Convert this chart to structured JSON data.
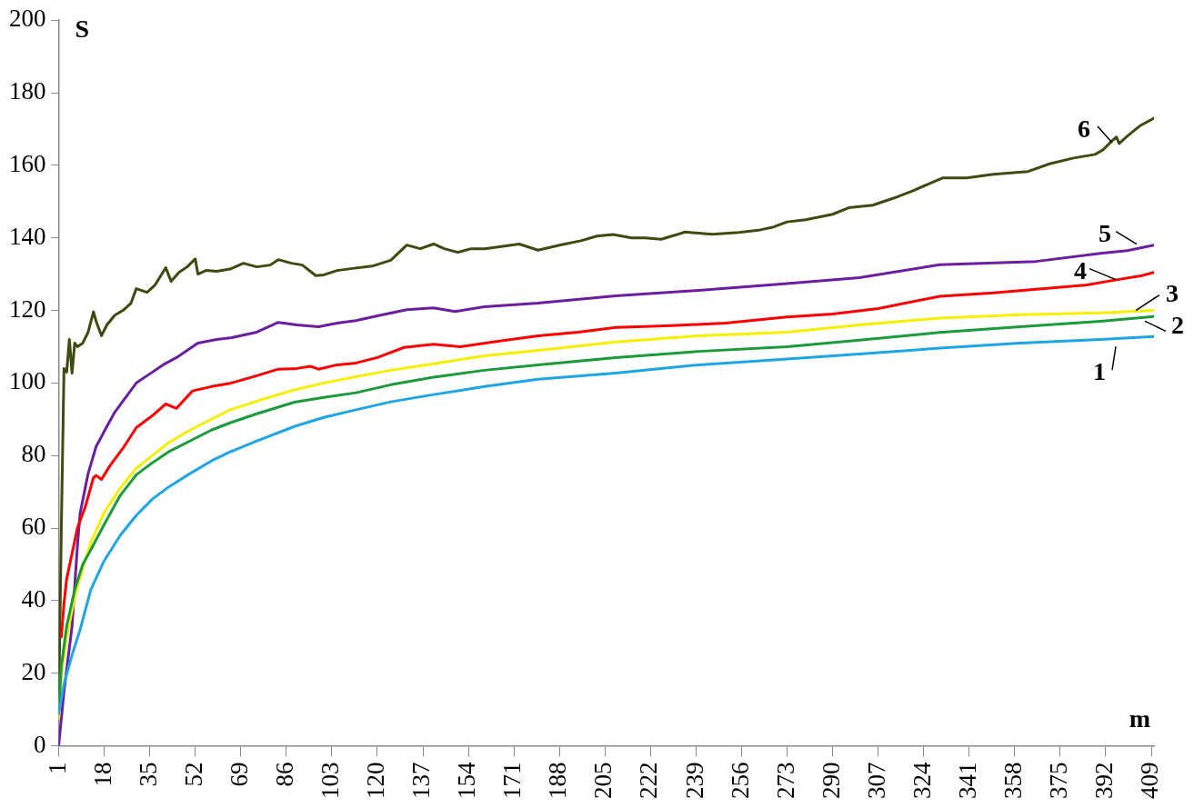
{
  "chart_data": {
    "type": "line",
    "xlabel": "m",
    "ylabel": "S",
    "xlim": [
      1,
      410
    ],
    "xticks": [
      1,
      18,
      35,
      52,
      69,
      86,
      103,
      120,
      137,
      154,
      171,
      188,
      205,
      222,
      239,
      256,
      273,
      290,
      307,
      324,
      341,
      358,
      375,
      392,
      409
    ],
    "ylim": [
      0,
      200
    ],
    "yticks": [
      0,
      20,
      40,
      60,
      80,
      100,
      120,
      140,
      160,
      180,
      200
    ],
    "grid": false,
    "legend": false,
    "marker": "none",
    "line_style": "solid",
    "series": [
      {
        "name": "1",
        "color": "#1ea5e6",
        "x": [
          1,
          3,
          6,
          9,
          13,
          18,
          24,
          30,
          36,
          42,
          50,
          58,
          65,
          75,
          89,
          100,
          112,
          125,
          141,
          160,
          180,
          209,
          240,
          273,
          300,
          330,
          360,
          390,
          410
        ],
        "values": [
          8.8,
          17,
          25,
          32,
          43,
          51,
          58,
          63.5,
          68,
          71.3,
          75,
          78.5,
          81,
          84,
          88,
          90.5,
          92.6,
          94.8,
          96.8,
          99,
          101,
          102.7,
          105,
          106.6,
          108,
          109.6,
          111,
          112,
          112.8
        ]
      },
      {
        "name": "2",
        "color": "#1a9a3a",
        "x": [
          1,
          2,
          4,
          7,
          10,
          13,
          18,
          24,
          30,
          36,
          42,
          50,
          58,
          65,
          75,
          89,
          100,
          112,
          125,
          141,
          160,
          180,
          209,
          240,
          273,
          300,
          330,
          360,
          390,
          410
        ],
        "values": [
          9.6,
          22,
          33,
          43,
          50,
          54,
          61,
          69,
          74.7,
          78,
          81,
          84,
          87,
          89,
          91.5,
          94.7,
          96,
          97.3,
          99.5,
          101.6,
          103.5,
          105,
          107,
          108.7,
          110,
          111.8,
          113.9,
          115.5,
          117,
          118.3
        ]
      },
      {
        "name": "3",
        "color": "#f5f000",
        "x": [
          1,
          2,
          4,
          7,
          10,
          13,
          18,
          24,
          30,
          36,
          42,
          50,
          58,
          65,
          75,
          89,
          100,
          112,
          125,
          141,
          160,
          180,
          209,
          240,
          273,
          300,
          330,
          360,
          390,
          410
        ],
        "values": [
          7.5,
          20,
          30,
          41,
          49,
          56,
          64.3,
          71,
          76.5,
          80,
          83.5,
          87,
          90,
          92.6,
          95,
          98.1,
          100,
          101.7,
          103.5,
          105.3,
          107.5,
          109,
          111.3,
          113,
          114,
          116,
          117.9,
          118.8,
          119.3,
          120
        ]
      },
      {
        "name": "4",
        "color": "#ff0000",
        "x": [
          2,
          3,
          4,
          6,
          8,
          11,
          14,
          15,
          17,
          20,
          25,
          30,
          36,
          41,
          45,
          51,
          58,
          65,
          75,
          83,
          90,
          95,
          98,
          105,
          112,
          120,
          130,
          141,
          151,
          165,
          180,
          195,
          209,
          230,
          250,
          273,
          290,
          307,
          330,
          350,
          370,
          385,
          395,
          405,
          410
        ],
        "values": [
          30,
          39.3,
          46,
          53,
          60,
          66,
          73.9,
          74.5,
          73.4,
          77,
          82,
          87.7,
          91,
          94.2,
          93,
          97.8,
          99,
          99.9,
          102,
          103.8,
          104,
          104.6,
          103.8,
          105,
          105.5,
          107,
          109.8,
          110.7,
          110,
          111.5,
          113,
          114,
          115.3,
          115.8,
          116.5,
          118.2,
          119,
          120.5,
          123.9,
          124.8,
          126.1,
          127,
          128.3,
          129.5,
          130.5
        ]
      },
      {
        "name": "5",
        "color": "#6a1fa0",
        "x": [
          1,
          3,
          6,
          8,
          9,
          12,
          15,
          19,
          22,
          25,
          30,
          35,
          40,
          45,
          53,
          60,
          65,
          75,
          83,
          90,
          98,
          105,
          112,
          120,
          131,
          141,
          149,
          160,
          180,
          209,
          240,
          273,
          300,
          330,
          366,
          390,
          400,
          410
        ],
        "values": [
          0,
          15,
          33,
          55,
          64,
          75,
          82.5,
          88,
          92,
          95,
          100,
          102.5,
          105,
          107,
          111,
          112,
          112.4,
          114,
          116.7,
          116,
          115.5,
          116.5,
          117.2,
          118.5,
          120.2,
          120.7,
          119.7,
          121,
          122,
          124,
          125.5,
          127.4,
          129,
          132.6,
          133.5,
          135.7,
          136.5,
          138
        ]
      },
      {
        "name": "6",
        "color": "#3d4a10",
        "x": [
          1,
          2,
          3,
          4,
          5,
          6,
          7,
          8,
          10,
          12,
          14,
          15,
          17,
          19,
          22,
          25,
          28,
          30,
          34,
          37,
          41,
          43,
          46,
          49,
          52,
          53,
          56,
          60,
          65,
          70,
          75,
          80,
          83,
          88,
          92,
          97,
          100,
          105,
          110,
          118,
          125,
          131,
          136,
          141,
          145,
          150,
          155,
          160,
          165,
          173,
          180,
          188,
          196,
          202,
          208,
          215,
          220,
          226,
          235,
          245,
          255,
          263,
          268,
          273,
          280,
          290,
          296,
          305,
          313,
          320,
          331,
          340,
          350,
          363,
          371,
          380,
          388,
          391,
          394,
          396,
          397,
          400,
          405,
          410
        ],
        "values": [
          10.7,
          60,
          104,
          103,
          112,
          102.7,
          111,
          110,
          111,
          114,
          119.6,
          117,
          113,
          116,
          118.7,
          120,
          122,
          126,
          125,
          127,
          131.8,
          128,
          130.5,
          132,
          134.2,
          130,
          131,
          130.8,
          131.4,
          133,
          132,
          132.5,
          134,
          133,
          132.5,
          129.6,
          129.8,
          131,
          131.5,
          132.2,
          133.8,
          138,
          137,
          138.3,
          137,
          136,
          137,
          137,
          137.5,
          138.3,
          136.6,
          138,
          139.2,
          140.5,
          140.9,
          140,
          140,
          139.6,
          141.6,
          141,
          141.5,
          142.2,
          143,
          144.4,
          145,
          146.5,
          148.3,
          149,
          151,
          153,
          156.5,
          156.5,
          157.5,
          158.3,
          160.4,
          162,
          163,
          164.3,
          166.5,
          167.8,
          166,
          168,
          171,
          173
        ]
      }
    ]
  }
}
